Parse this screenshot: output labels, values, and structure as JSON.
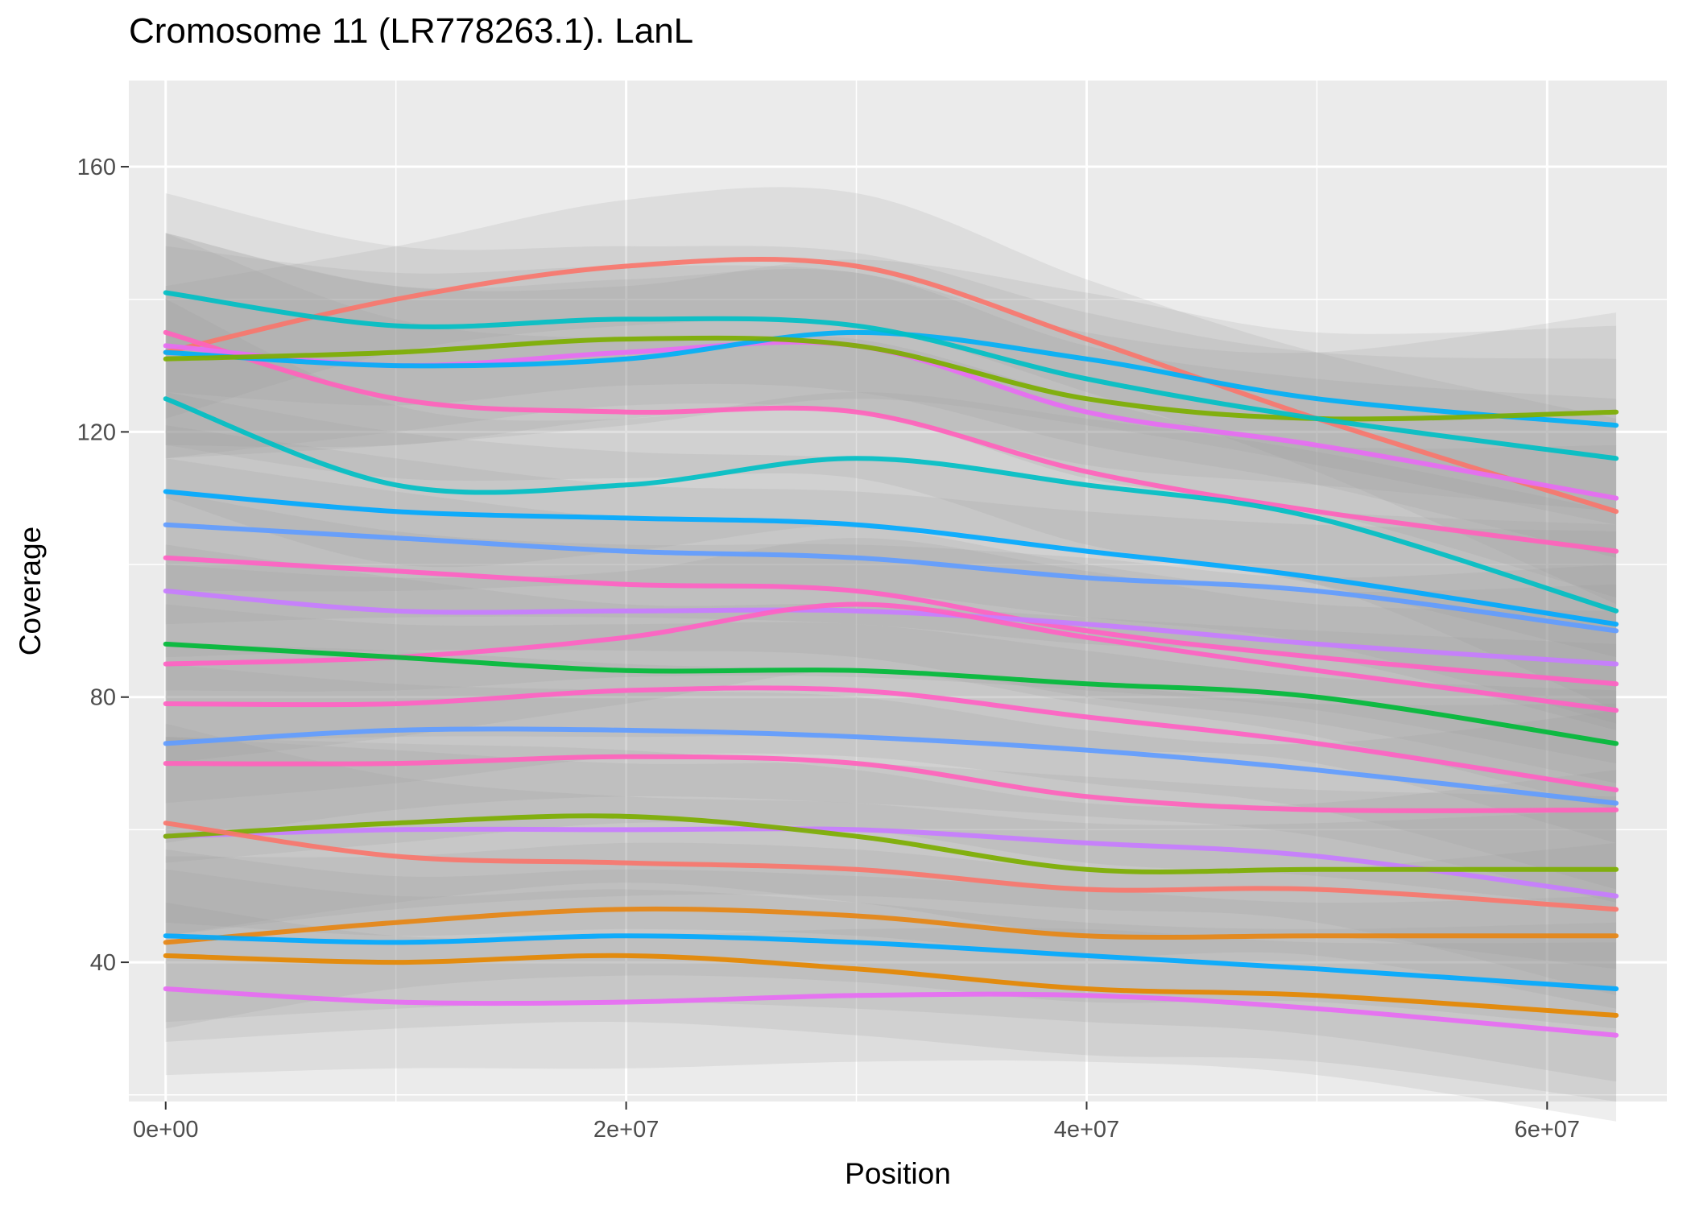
{
  "chart_data": {
    "type": "line",
    "title": "Cromosome 11 (LR778263.1). LanL",
    "xlabel": "Position",
    "ylabel": "Coverage",
    "xlim": [
      -1600000,
      65200000
    ],
    "ylim": [
      19,
      173
    ],
    "x_ticks": [
      0,
      20000000,
      40000000,
      60000000
    ],
    "x_tick_labels": [
      "0e+00",
      "2e+07",
      "4e+07",
      "6e+07"
    ],
    "y_ticks": [
      40,
      80,
      120,
      160
    ],
    "y_tick_labels": [
      "40",
      "80",
      "120",
      "160"
    ],
    "grid": true,
    "legend": "none",
    "panel_background": "#ebebeb",
    "ribbon_color": "#999999",
    "x": [
      0,
      10000000,
      20000000,
      30000000,
      40000000,
      50000000,
      63000000
    ],
    "series": [
      {
        "color": "#F8766D",
        "values": [
          132,
          140,
          145,
          145,
          134,
          122,
          108
        ],
        "ribbon": [
          [
            122,
            142
          ],
          [
            132,
            148
          ],
          [
            136,
            155
          ],
          [
            136,
            156
          ],
          [
            126,
            143
          ],
          [
            114,
            132
          ],
          [
            94,
            122
          ]
        ]
      },
      {
        "color": "#FF62BC",
        "values": [
          135,
          125,
          123,
          123,
          114,
          108,
          102
        ],
        "ribbon": [
          [
            118,
            150
          ],
          [
            113,
            137
          ],
          [
            113,
            134
          ],
          [
            113,
            134
          ],
          [
            103,
            125
          ],
          [
            97,
            118
          ],
          [
            86,
            118
          ]
        ]
      },
      {
        "color": "#E76BF3",
        "values": [
          133,
          130,
          132,
          133,
          123,
          118,
          110
        ],
        "ribbon": [
          [
            118,
            150
          ],
          [
            118,
            142
          ],
          [
            122,
            143
          ],
          [
            123,
            144
          ],
          [
            113,
            133
          ],
          [
            108,
            128
          ],
          [
            95,
            125
          ]
        ]
      },
      {
        "color": "#00B0F6",
        "values": [
          132,
          130,
          131,
          135,
          131,
          125,
          121
        ],
        "ribbon": [
          [
            116,
            150
          ],
          [
            118,
            142
          ],
          [
            121,
            142
          ],
          [
            125,
            146
          ],
          [
            121,
            141
          ],
          [
            115,
            135
          ],
          [
            106,
            136
          ]
        ]
      },
      {
        "color": "#7CAE00",
        "values": [
          131,
          132,
          134,
          133,
          125,
          122,
          123
        ],
        "ribbon": [
          [
            116,
            148
          ],
          [
            120,
            144
          ],
          [
            124,
            145
          ],
          [
            123,
            144
          ],
          [
            115,
            135
          ],
          [
            112,
            132
          ],
          [
            108,
            138
          ]
        ]
      },
      {
        "color": "#00BFC4",
        "values": [
          141,
          136,
          137,
          136,
          128,
          122,
          116
        ],
        "ribbon": [
          [
            126,
            156
          ],
          [
            124,
            148
          ],
          [
            127,
            148
          ],
          [
            126,
            147
          ],
          [
            118,
            138
          ],
          [
            112,
            132
          ],
          [
            101,
            131
          ]
        ]
      },
      {
        "color": "#00BFC4",
        "values": [
          125,
          112,
          112,
          116,
          112,
          107,
          93
        ],
        "ribbon": [
          [
            110,
            140
          ],
          [
            100,
            124
          ],
          [
            102,
            122
          ],
          [
            106,
            126
          ],
          [
            102,
            122
          ],
          [
            97,
            117
          ],
          [
            78,
            108
          ]
        ]
      },
      {
        "color": "#00A9FF",
        "values": [
          111,
          108,
          107,
          106,
          102,
          98,
          91
        ],
        "ribbon": [
          [
            96,
            126
          ],
          [
            96,
            120
          ],
          [
            97,
            117
          ],
          [
            96,
            116
          ],
          [
            92,
            112
          ],
          [
            88,
            108
          ],
          [
            76,
            106
          ]
        ]
      },
      {
        "color": "#619CFF",
        "values": [
          106,
          104,
          102,
          101,
          98,
          96,
          90
        ],
        "ribbon": [
          [
            91,
            121
          ],
          [
            92,
            116
          ],
          [
            92,
            112
          ],
          [
            91,
            111
          ],
          [
            88,
            108
          ],
          [
            86,
            106
          ],
          [
            75,
            105
          ]
        ]
      },
      {
        "color": "#FF61C3",
        "values": [
          101,
          99,
          97,
          96,
          90,
          86,
          82
        ],
        "ribbon": [
          [
            86,
            116
          ],
          [
            87,
            111
          ],
          [
            87,
            107
          ],
          [
            86,
            106
          ],
          [
            80,
            100
          ],
          [
            76,
            96
          ],
          [
            67,
            97
          ]
        ]
      },
      {
        "color": "#C77CFF",
        "values": [
          96,
          93,
          93,
          93,
          91,
          88,
          85
        ],
        "ribbon": [
          [
            81,
            111
          ],
          [
            81,
            105
          ],
          [
            83,
            103
          ],
          [
            83,
            103
          ],
          [
            81,
            101
          ],
          [
            78,
            98
          ],
          [
            70,
            100
          ]
        ]
      },
      {
        "color": "#FF61C3",
        "values": [
          85,
          86,
          89,
          94,
          89,
          84,
          78
        ],
        "ribbon": [
          [
            70,
            100
          ],
          [
            74,
            98
          ],
          [
            79,
            99
          ],
          [
            84,
            104
          ],
          [
            79,
            99
          ],
          [
            74,
            94
          ],
          [
            63,
            93
          ]
        ]
      },
      {
        "color": "#00BA38",
        "values": [
          88,
          86,
          84,
          84,
          82,
          80,
          73
        ],
        "ribbon": [
          [
            73,
            103
          ],
          [
            74,
            98
          ],
          [
            74,
            94
          ],
          [
            74,
            94
          ],
          [
            72,
            92
          ],
          [
            70,
            90
          ],
          [
            58,
            88
          ]
        ]
      },
      {
        "color": "#FF61C3",
        "values": [
          79,
          79,
          81,
          81,
          77,
          73,
          66
        ],
        "ribbon": [
          [
            64,
            94
          ],
          [
            67,
            91
          ],
          [
            71,
            91
          ],
          [
            71,
            91
          ],
          [
            67,
            87
          ],
          [
            63,
            83
          ],
          [
            51,
            81
          ]
        ]
      },
      {
        "color": "#619CFF",
        "values": [
          73,
          75,
          75,
          74,
          72,
          69,
          64
        ],
        "ribbon": [
          [
            58,
            88
          ],
          [
            63,
            87
          ],
          [
            65,
            85
          ],
          [
            64,
            84
          ],
          [
            62,
            82
          ],
          [
            59,
            79
          ],
          [
            49,
            79
          ]
        ]
      },
      {
        "color": "#FF62BC",
        "values": [
          70,
          70,
          71,
          70,
          65,
          63,
          63
        ],
        "ribbon": [
          [
            55,
            85
          ],
          [
            58,
            82
          ],
          [
            61,
            81
          ],
          [
            60,
            80
          ],
          [
            55,
            75
          ],
          [
            53,
            73
          ],
          [
            48,
            78
          ]
        ]
      },
      {
        "color": "#C77CFF",
        "values": [
          59,
          60,
          60,
          60,
          58,
          56,
          50
        ],
        "ribbon": [
          [
            44,
            74
          ],
          [
            48,
            72
          ],
          [
            50,
            70
          ],
          [
            50,
            70
          ],
          [
            48,
            68
          ],
          [
            46,
            66
          ],
          [
            35,
            65
          ]
        ]
      },
      {
        "color": "#7CAE00",
        "values": [
          59,
          61,
          62,
          59,
          54,
          54,
          54
        ],
        "ribbon": [
          [
            44,
            74
          ],
          [
            49,
            73
          ],
          [
            52,
            72
          ],
          [
            49,
            69
          ],
          [
            44,
            64
          ],
          [
            44,
            64
          ],
          [
            39,
            69
          ]
        ]
      },
      {
        "color": "#F8766D",
        "values": [
          61,
          56,
          55,
          54,
          51,
          51,
          48
        ],
        "ribbon": [
          [
            46,
            76
          ],
          [
            44,
            68
          ],
          [
            45,
            65
          ],
          [
            44,
            64
          ],
          [
            41,
            61
          ],
          [
            41,
            61
          ],
          [
            33,
            63
          ]
        ]
      },
      {
        "color": "#E68613",
        "values": [
          43,
          46,
          48,
          47,
          44,
          44,
          44
        ],
        "ribbon": [
          [
            30,
            56
          ],
          [
            36,
            56
          ],
          [
            38,
            58
          ],
          [
            37,
            57
          ],
          [
            34,
            54
          ],
          [
            34,
            54
          ],
          [
            30,
            58
          ]
        ]
      },
      {
        "color": "#00A9FF",
        "values": [
          44,
          43,
          44,
          43,
          41,
          39,
          36
        ],
        "ribbon": [
          [
            31,
            57
          ],
          [
            33,
            53
          ],
          [
            34,
            54
          ],
          [
            33,
            53
          ],
          [
            31,
            51
          ],
          [
            29,
            49
          ],
          [
            22,
            50
          ]
        ]
      },
      {
        "color": "#E58700",
        "values": [
          41,
          40,
          41,
          39,
          36,
          35,
          32
        ],
        "ribbon": [
          [
            28,
            54
          ],
          [
            30,
            50
          ],
          [
            31,
            51
          ],
          [
            29,
            49
          ],
          [
            26,
            46
          ],
          [
            25,
            45
          ],
          [
            19,
            46
          ]
        ]
      },
      {
        "color": "#E76BF3",
        "values": [
          36,
          34,
          34,
          35,
          35,
          33,
          29
        ],
        "ribbon": [
          [
            23,
            49
          ],
          [
            24,
            44
          ],
          [
            24,
            44
          ],
          [
            25,
            45
          ],
          [
            25,
            45
          ],
          [
            23,
            43
          ],
          [
            16,
            43
          ]
        ]
      }
    ]
  }
}
